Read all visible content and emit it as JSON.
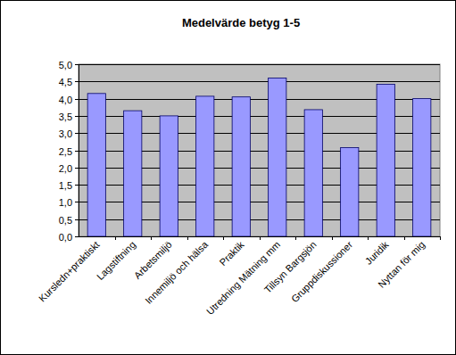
{
  "chart_data": {
    "type": "bar",
    "title": "Medelvärde betyg 1-5",
    "categories": [
      "Kursledn+praktiskt",
      "Lagstiftning",
      "Arbetsmiljö",
      "Innemiljö och hälsa",
      "Praktik",
      "Utredning Mätning mm",
      "Tillsyn Bargsjön",
      "Gruppdiskussioner",
      "Juridik",
      "Nyttan för mig"
    ],
    "values": [
      4.15,
      3.65,
      3.5,
      4.07,
      4.05,
      4.6,
      3.68,
      2.58,
      4.42,
      4.0
    ],
    "color": "#9999ff",
    "ylim": [
      0,
      5
    ],
    "yticks": [
      {
        "value": 0,
        "label": "0,0"
      },
      {
        "value": 0.5,
        "label": "0,5"
      },
      {
        "value": 1,
        "label": "1,0"
      },
      {
        "value": 1.5,
        "label": "1,5"
      },
      {
        "value": 2,
        "label": "2,0"
      },
      {
        "value": 2.5,
        "label": "2,5"
      },
      {
        "value": 3,
        "label": "3,0"
      },
      {
        "value": 3.5,
        "label": "3,5"
      },
      {
        "value": 4,
        "label": "4,0"
      },
      {
        "value": 4.5,
        "label": "4,5"
      },
      {
        "value": 5,
        "label": "5,0"
      }
    ],
    "grid": true
  }
}
